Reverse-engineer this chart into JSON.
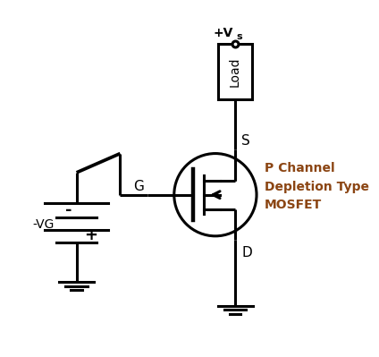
{
  "bg_color": "#ffffff",
  "line_color": "#000000",
  "text_color_mosfet": "#8B4513",
  "mosfet_label": "P Channel\nDepletion Type\nMOSFET",
  "vg_label": "-VG",
  "vs_label": "+Vs"
}
